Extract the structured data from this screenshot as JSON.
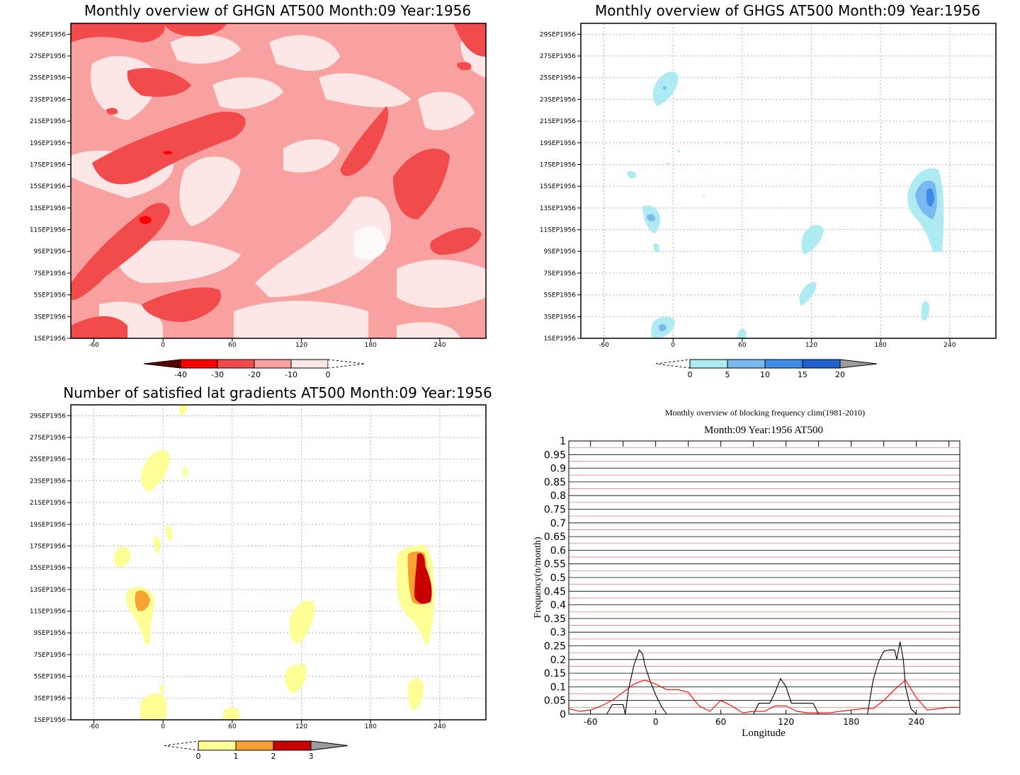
{
  "panels": {
    "ghgn": {
      "title": "Monthly overview of GHGN AT500 Month:09 Year:1956",
      "colorbar": {
        "labels": [
          "-40",
          "-30",
          "-20",
          "-10",
          "0"
        ],
        "colors": [
          "#5a0000",
          "#ff0000",
          "#f24b4b",
          "#f9a0a0",
          "#fde6e6"
        ]
      }
    },
    "ghgs": {
      "title": "Monthly overview of GHGS AT500 Month:09 Year:1956",
      "colorbar": {
        "labels": [
          "0",
          "5",
          "10",
          "15",
          "20"
        ],
        "colors": [
          "#aeeaf2",
          "#7ab9ef",
          "#3f8ce8",
          "#1f5fd0",
          "#9c9c9c"
        ]
      }
    },
    "gradients": {
      "title": "Number of satisfied lat gradients AT500 Month:09 Year:1956",
      "colorbar": {
        "labels": [
          "0",
          "1",
          "2",
          "3"
        ],
        "colors": [
          "#ffff96",
          "#f8a032",
          "#c80000",
          "#9c9c9c"
        ]
      }
    },
    "freq": {
      "title_line1": "Monthly overview of blocking frequency clim(1981-2010)",
      "title_line2": "Month:09 Year:1956  AT500",
      "xlabel": "Longitude",
      "ylabel": "Frequency(n/month)"
    }
  },
  "axes": {
    "date_ticks": [
      "29SEP1956",
      "27SEP1956",
      "25SEP1956",
      "23SEP1956",
      "21SEP1956",
      "19SEP1956",
      "17SEP1956",
      "15SEP1956",
      "13SEP1956",
      "11SEP1956",
      "9SEP1956",
      "7SEP1956",
      "5SEP1956",
      "3SEP1956",
      "1SEP1956"
    ],
    "lon_ticks": [
      "-60",
      "0",
      "60",
      "120",
      "180",
      "240"
    ],
    "freq_yticks": [
      "1",
      "0.95",
      "0.9",
      "0.85",
      "0.8",
      "0.75",
      "0.7",
      "0.65",
      "0.6",
      "0.55",
      "0.5",
      "0.45",
      "0.4",
      "0.35",
      "0.3",
      "0.25",
      "0.2",
      "0.15",
      "0.1",
      "0.05",
      "0"
    ]
  },
  "chart_data": [
    {
      "type": "heatmap",
      "title": "Monthly overview of GHGN AT500 Month:09 Year:1956",
      "x_range": [
        -80,
        280
      ],
      "y_range": [
        "1SEP1956",
        "30SEP1956"
      ],
      "levels": [
        -40,
        -30,
        -20,
        -10,
        0
      ]
    },
    {
      "type": "heatmap",
      "title": "Monthly overview of GHGS AT500 Month:09 Year:1956",
      "x_range": [
        -80,
        280
      ],
      "y_range": [
        "1SEP1956",
        "30SEP1956"
      ],
      "levels": [
        0,
        5,
        10,
        15,
        20
      ]
    },
    {
      "type": "heatmap",
      "title": "Number of satisfied lat gradients AT500 Month:09 Year:1956",
      "x_range": [
        -80,
        280
      ],
      "y_range": [
        "1SEP1956",
        "30SEP1956"
      ],
      "levels": [
        0,
        1,
        2,
        3
      ]
    },
    {
      "type": "line",
      "title": "Monthly overview of blocking frequency clim(1981-2010)",
      "subtitle": "Month:09 Year:1956  AT500",
      "xlabel": "Longitude",
      "ylabel": "Frequency(n/month)",
      "xlim": [
        -80,
        280
      ],
      "ylim": [
        0,
        1
      ],
      "grid": true,
      "series": [
        {
          "color": "#000000",
          "x": [
            -80,
            -45,
            -40,
            -35,
            -30,
            -28,
            -25,
            -20,
            -15,
            -12,
            -10,
            -5,
            0,
            5,
            10,
            15,
            18,
            20,
            25,
            80,
            83,
            85,
            90,
            95,
            100,
            105,
            110,
            115,
            120,
            125,
            130,
            135,
            140,
            145,
            150,
            195,
            200,
            205,
            210,
            215,
            220,
            222,
            225,
            228,
            230,
            235,
            240,
            280
          ],
          "y": [
            0,
            0,
            0.035,
            0.035,
            0.035,
            0,
            0.09,
            0.18,
            0.235,
            0.22,
            0.18,
            0.12,
            0.07,
            0.03,
            0,
            0,
            0,
            0,
            0,
            0,
            0,
            0,
            0,
            0.04,
            0.04,
            0.04,
            0.08,
            0.13,
            0.1,
            0.04,
            0.04,
            0.04,
            0.04,
            0.04,
            0,
            0,
            0.12,
            0.19,
            0.23,
            0.235,
            0.235,
            0.2,
            0.265,
            0.2,
            0.1,
            0.02,
            0,
            0
          ]
        },
        {
          "color": "#ff0000",
          "x": [
            -80,
            -70,
            -60,
            -50,
            -40,
            -30,
            -20,
            -10,
            0,
            10,
            20,
            30,
            40,
            50,
            60,
            70,
            80,
            90,
            100,
            110,
            120,
            130,
            140,
            150,
            160,
            170,
            180,
            190,
            200,
            210,
            220,
            230,
            240,
            250,
            260,
            270,
            280
          ],
          "y": [
            0.02,
            0.01,
            0.015,
            0.03,
            0.05,
            0.08,
            0.11,
            0.125,
            0.11,
            0.09,
            0.09,
            0.08,
            0.03,
            0.01,
            0.05,
            0.03,
            0.005,
            0.01,
            0.01,
            0.03,
            0.03,
            0.01,
            0.005,
            0.005,
            0.005,
            0.01,
            0.015,
            0.02,
            0.02,
            0.05,
            0.09,
            0.125,
            0.06,
            0.015,
            0.02,
            0.025,
            0.025
          ]
        }
      ]
    }
  ]
}
